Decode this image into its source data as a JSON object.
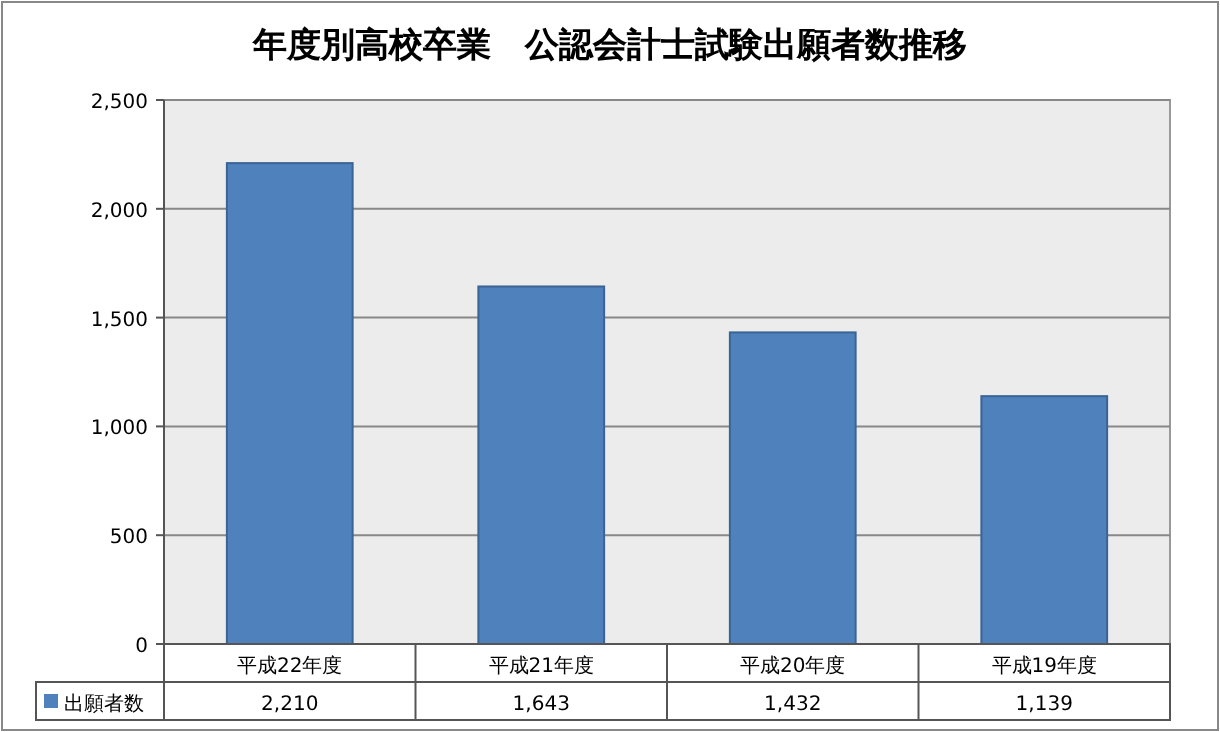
{
  "chart_data": {
    "type": "bar",
    "title": "年度別高校卒業　公認会計士試験出願者数推移",
    "categories": [
      "平成22年度",
      "平成21年度",
      "平成20年度",
      "平成19年度"
    ],
    "series": [
      {
        "name": "出願者数",
        "color": "#4f81bd",
        "values": [
          2210,
          1643,
          1432,
          1139
        ],
        "value_labels": [
          "2,210",
          "1,643",
          "1,432",
          "1,139"
        ]
      }
    ],
    "ylim": [
      0,
      2500
    ],
    "yticks": [
      {
        "value": 0,
        "label": "0"
      },
      {
        "value": 500,
        "label": "500"
      },
      {
        "value": 1000,
        "label": "1,000"
      },
      {
        "value": 1500,
        "label": "1,500"
      },
      {
        "value": 2000,
        "label": "2,000"
      },
      {
        "value": 2500,
        "label": "2,500"
      }
    ],
    "grid": "y",
    "legend": "bottom"
  }
}
